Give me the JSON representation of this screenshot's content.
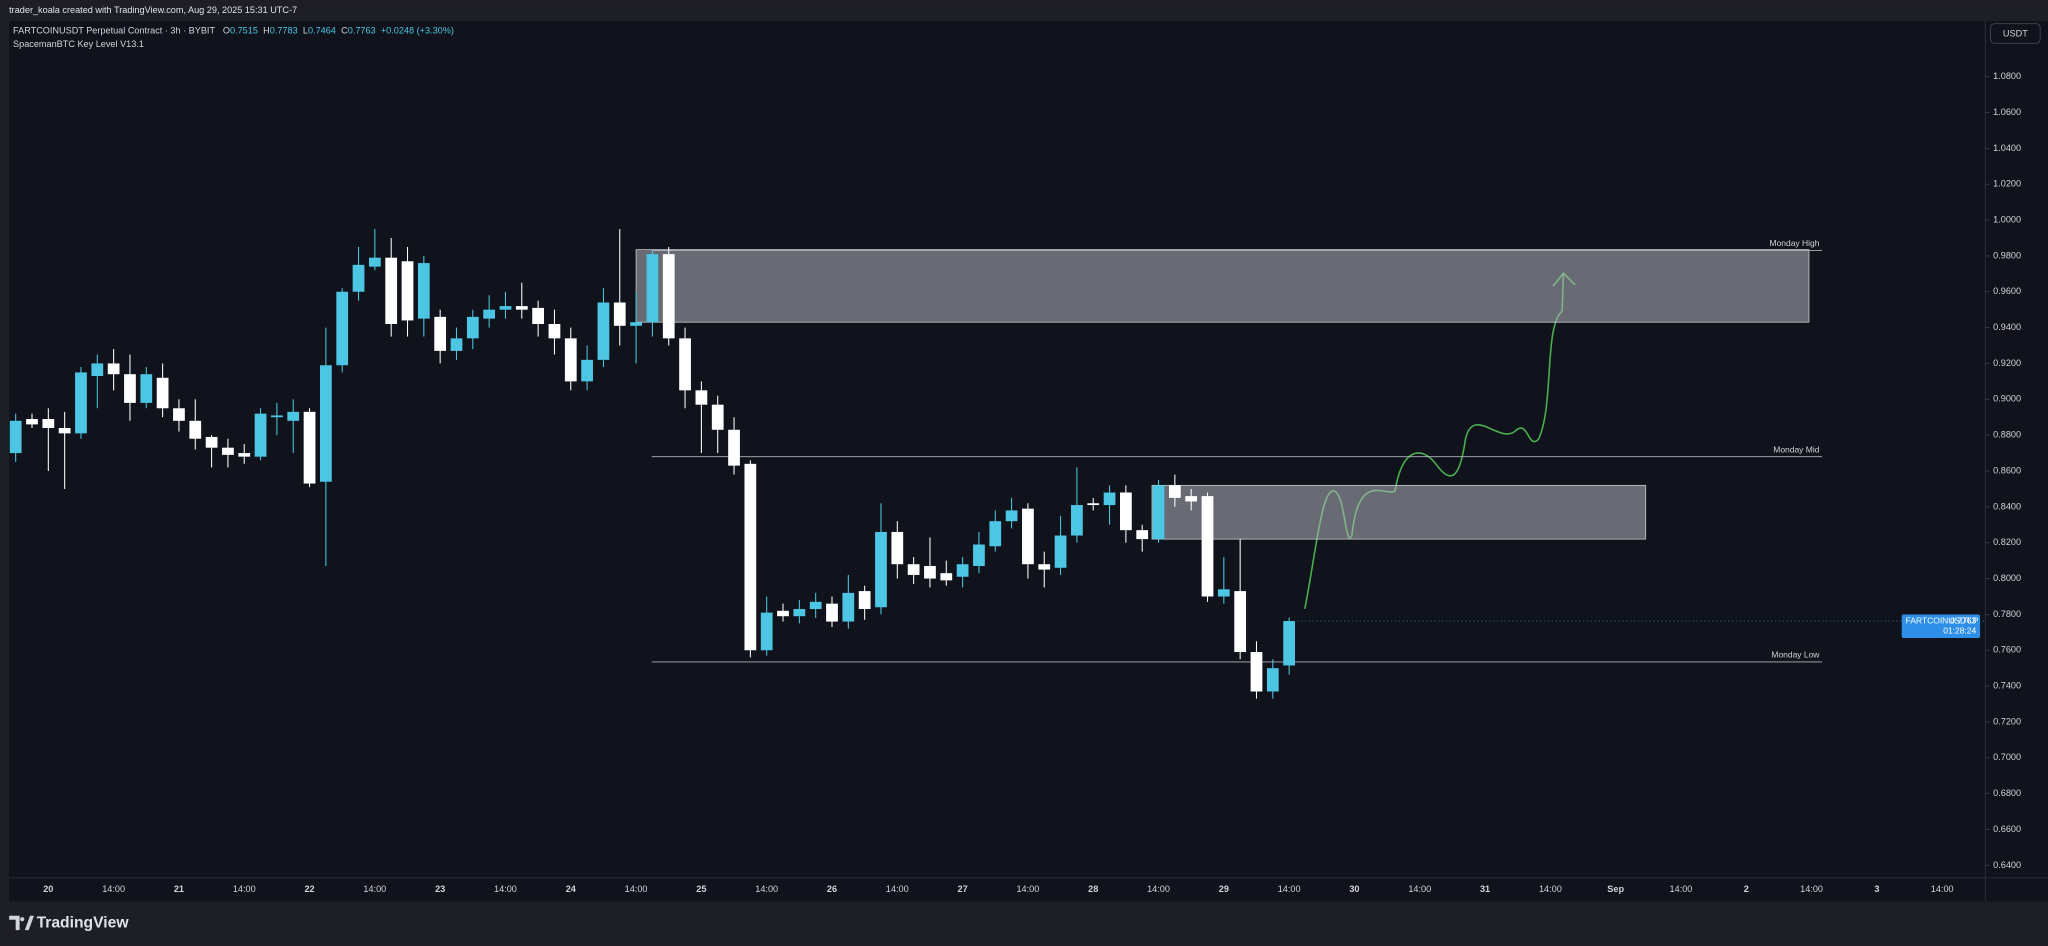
{
  "header": {
    "creator": "trader_koala created with TradingView.com, Aug 29, 2025 15:31 UTC-7"
  },
  "chart_data": {
    "type": "candlestick",
    "symbol": "FARTCOINUSDT Perpetual Contract · 3h · BYBIT",
    "legend": [
      {
        "label": "O",
        "value": 0.7515
      },
      {
        "label": "H",
        "value": 0.7783
      },
      {
        "label": "L",
        "value": 0.7464
      },
      {
        "label": "C",
        "value": 0.7763
      }
    ],
    "change": "+0.0248 (+3.30%)",
    "indicator": "SpacemanBTC Key Level V13.1",
    "currency": "USDT",
    "up_color": "#4cc6e3",
    "down_color": "#ffffff",
    "open": [
      0.87,
      0.889,
      0.889,
      0.884,
      0.881,
      0.913,
      0.92,
      0.914,
      0.898,
      0.912,
      0.895,
      0.888,
      0.879,
      0.873,
      0.87,
      0.868,
      0.89,
      0.888,
      0.893,
      0.854,
      0.919,
      0.96,
      0.974,
      0.979,
      0.977,
      0.945,
      0.946,
      0.927,
      0.934,
      0.945,
      0.95,
      0.952,
      0.951,
      0.942,
      0.934,
      0.91,
      0.922,
      0.954,
      0.941,
      0.943,
      0.981,
      0.934,
      0.905,
      0.897,
      0.883,
      0.864,
      0.76,
      0.782,
      0.779,
      0.783,
      0.786,
      0.776,
      0.793,
      0.784,
      0.826,
      0.808,
      0.807,
      0.803,
      0.801,
      0.807,
      0.818,
      0.832,
      0.839,
      0.808,
      0.806,
      0.824,
      0.842,
      0.841,
      0.848,
      0.827,
      0.822,
      0.852,
      0.846,
      0.846,
      0.79,
      0.793,
      0.759,
      0.737,
      0.7515
    ],
    "high": [
      0.892,
      0.892,
      0.895,
      0.893,
      0.918,
      0.925,
      0.928,
      0.925,
      0.918,
      0.92,
      0.9,
      0.9,
      0.88,
      0.878,
      0.875,
      0.895,
      0.898,
      0.9,
      0.895,
      0.94,
      0.962,
      0.985,
      0.995,
      0.99,
      0.985,
      0.98,
      0.95,
      0.94,
      0.95,
      0.958,
      0.96,
      0.965,
      0.955,
      0.95,
      0.94,
      0.93,
      0.962,
      0.995,
      0.96,
      0.983,
      0.985,
      0.94,
      0.91,
      0.902,
      0.89,
      0.866,
      0.79,
      0.786,
      0.788,
      0.792,
      0.79,
      0.802,
      0.796,
      0.842,
      0.832,
      0.812,
      0.823,
      0.81,
      0.812,
      0.826,
      0.838,
      0.845,
      0.842,
      0.815,
      0.835,
      0.862,
      0.845,
      0.852,
      0.852,
      0.83,
      0.855,
      0.858,
      0.85,
      0.848,
      0.812,
      0.822,
      0.765,
      0.755,
      0.7783
    ],
    "low": [
      0.865,
      0.884,
      0.86,
      0.85,
      0.878,
      0.895,
      0.905,
      0.888,
      0.895,
      0.89,
      0.882,
      0.872,
      0.862,
      0.862,
      0.864,
      0.866,
      0.88,
      0.87,
      0.851,
      0.807,
      0.915,
      0.955,
      0.972,
      0.935,
      0.935,
      0.935,
      0.92,
      0.922,
      0.928,
      0.94,
      0.945,
      0.945,
      0.935,
      0.925,
      0.905,
      0.905,
      0.918,
      0.93,
      0.92,
      0.935,
      0.93,
      0.895,
      0.87,
      0.87,
      0.858,
      0.756,
      0.757,
      0.776,
      0.775,
      0.778,
      0.773,
      0.772,
      0.777,
      0.78,
      0.8,
      0.797,
      0.795,
      0.796,
      0.795,
      0.803,
      0.815,
      0.828,
      0.8,
      0.795,
      0.802,
      0.82,
      0.838,
      0.83,
      0.82,
      0.815,
      0.82,
      0.84,
      0.838,
      0.787,
      0.786,
      0.755,
      0.733,
      0.733,
      0.7464
    ],
    "close": [
      0.888,
      0.886,
      0.884,
      0.881,
      0.915,
      0.92,
      0.914,
      0.898,
      0.914,
      0.895,
      0.888,
      0.878,
      0.873,
      0.869,
      0.868,
      0.892,
      0.891,
      0.893,
      0.853,
      0.919,
      0.96,
      0.975,
      0.979,
      0.942,
      0.944,
      0.976,
      0.927,
      0.934,
      0.946,
      0.95,
      0.952,
      0.95,
      0.942,
      0.934,
      0.91,
      0.922,
      0.954,
      0.941,
      0.943,
      0.981,
      0.934,
      0.905,
      0.897,
      0.883,
      0.863,
      0.76,
      0.781,
      0.779,
      0.783,
      0.787,
      0.776,
      0.792,
      0.783,
      0.826,
      0.808,
      0.802,
      0.8,
      0.799,
      0.808,
      0.819,
      0.832,
      0.838,
      0.808,
      0.805,
      0.824,
      0.841,
      0.841,
      0.848,
      0.827,
      0.822,
      0.852,
      0.845,
      0.843,
      0.79,
      0.794,
      0.759,
      0.737,
      0.75,
      0.7763
    ],
    "levels": [
      {
        "name": "Monday High",
        "value": 0.983
      },
      {
        "name": "Monday Mid",
        "value": 0.868
      },
      {
        "name": "Monday Low",
        "value": 0.7535
      }
    ],
    "zones": [
      {
        "top": 0.9835,
        "bottom": 0.943
      },
      {
        "top": 0.852,
        "bottom": 0.822
      }
    ],
    "ylim": [
      0.633,
      1.111
    ],
    "yticks": [
      {
        "value": 1.08,
        "label": "1.0800"
      },
      {
        "value": 1.06,
        "label": "1.0600"
      },
      {
        "value": 1.04,
        "label": "1.0400"
      },
      {
        "value": 1.02,
        "label": "1.0200"
      },
      {
        "value": 1.0,
        "label": "1.0000"
      },
      {
        "value": 0.98,
        "label": "0.9800"
      },
      {
        "value": 0.96,
        "label": "0.9600"
      },
      {
        "value": 0.94,
        "label": "0.9400"
      },
      {
        "value": 0.92,
        "label": "0.9200"
      },
      {
        "value": 0.9,
        "label": "0.9000"
      },
      {
        "value": 0.88,
        "label": "0.8800"
      },
      {
        "value": 0.86,
        "label": "0.8600"
      },
      {
        "value": 0.84,
        "label": "0.8400"
      },
      {
        "value": 0.82,
        "label": "0.8200"
      },
      {
        "value": 0.8,
        "label": "0.8000"
      },
      {
        "value": 0.78,
        "label": "0.7800"
      },
      {
        "value": 0.76,
        "label": "0.7600"
      },
      {
        "value": 0.74,
        "label": "0.7400"
      },
      {
        "value": 0.72,
        "label": "0.7200"
      },
      {
        "value": 0.7,
        "label": "0.7000"
      },
      {
        "value": 0.68,
        "label": "0.6800"
      },
      {
        "value": 0.66,
        "label": "0.6600"
      },
      {
        "value": 0.64,
        "label": "0.6400"
      }
    ],
    "xticks": [
      "20",
      "14:00",
      "21",
      "14:00",
      "22",
      "14:00",
      "23",
      "14:00",
      "24",
      "14:00",
      "25",
      "14:00",
      "26",
      "14:00",
      "27",
      "14:00",
      "28",
      "14:00",
      "29",
      "14:00",
      "30",
      "14:00",
      "31",
      "14:00",
      "Sep",
      "14:00",
      "2",
      "14:00",
      "3",
      "14:00"
    ],
    "last_price": {
      "symbol": "FARTCOINUSDT.P",
      "value": 0.7763,
      "countdown": "01:28:24"
    }
  },
  "footer": {
    "brand": "TradingView"
  }
}
